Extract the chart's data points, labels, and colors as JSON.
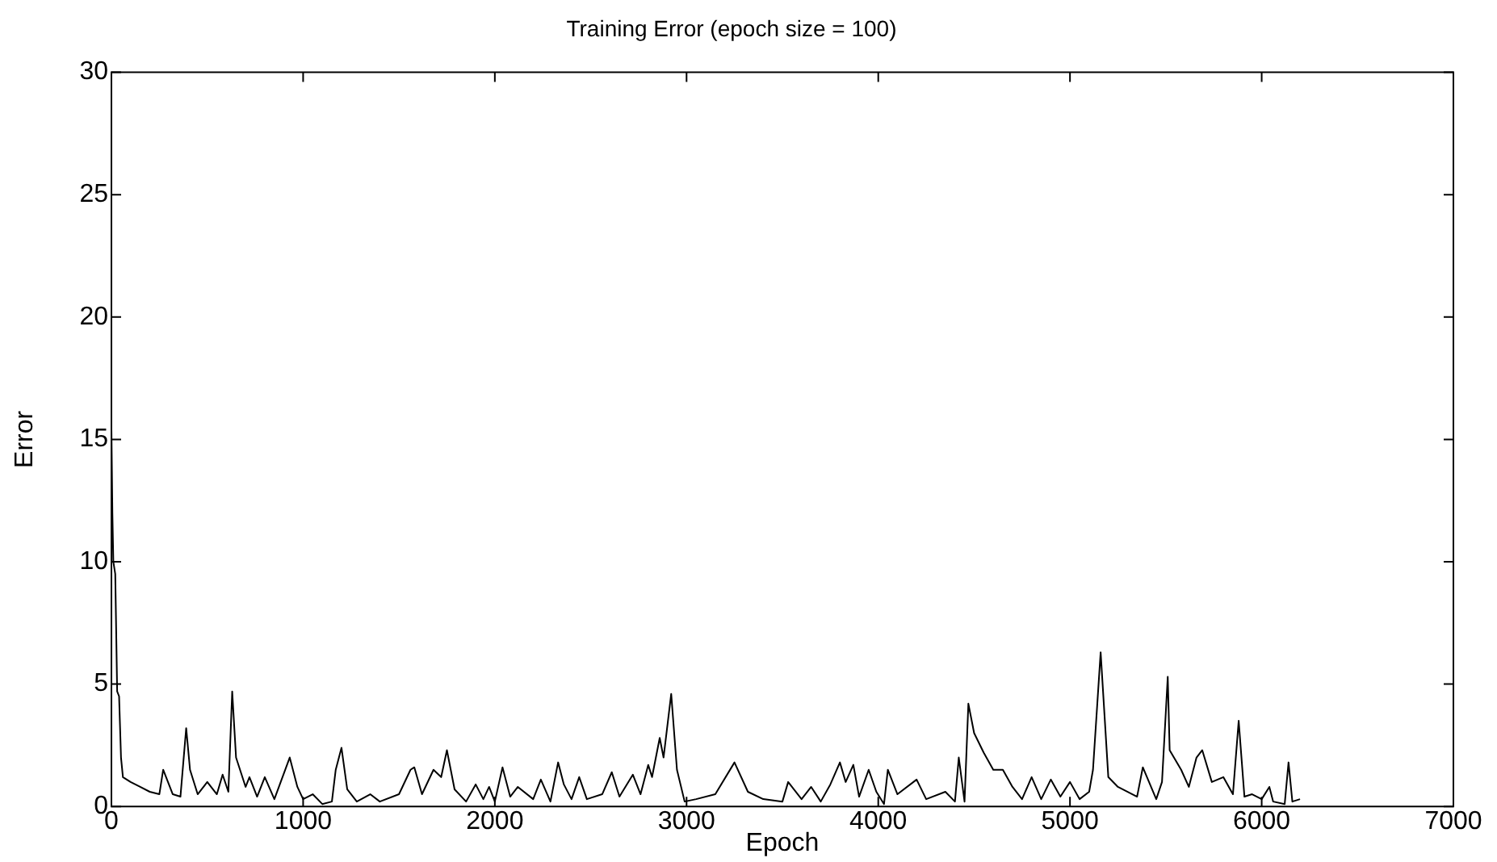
{
  "chart_data": {
    "type": "line",
    "title": "Training Error (epoch size = 100)",
    "xlabel": "Epoch",
    "ylabel": "Error",
    "xlim": [
      0,
      7000
    ],
    "ylim": [
      0,
      30
    ],
    "xticks": [
      0,
      1000,
      2000,
      3000,
      4000,
      5000,
      6000,
      7000
    ],
    "yticks": [
      0,
      5,
      10,
      15,
      20,
      25,
      30
    ],
    "legend": false,
    "marker": "none",
    "line_style": "solid",
    "series": [
      {
        "color": "#000000",
        "x": [
          0,
          5,
          10,
          20,
          30,
          40,
          50,
          60,
          100,
          150,
          200,
          250,
          270,
          320,
          360,
          390,
          410,
          450,
          500,
          550,
          580,
          610,
          630,
          650,
          700,
          720,
          760,
          800,
          850,
          930,
          970,
          1000,
          1050,
          1100,
          1150,
          1170,
          1200,
          1230,
          1280,
          1350,
          1400,
          1500,
          1560,
          1580,
          1620,
          1680,
          1720,
          1750,
          1790,
          1850,
          1900,
          1940,
          1970,
          2000,
          2040,
          2080,
          2120,
          2200,
          2240,
          2290,
          2330,
          2360,
          2400,
          2440,
          2480,
          2560,
          2610,
          2650,
          2720,
          2760,
          2800,
          2820,
          2860,
          2880,
          2920,
          2950,
          2990,
          3050,
          3150,
          3250,
          3320,
          3400,
          3500,
          3530,
          3600,
          3650,
          3700,
          3750,
          3800,
          3830,
          3870,
          3900,
          3950,
          3990,
          4030,
          4050,
          4100,
          4200,
          4250,
          4350,
          4400,
          4420,
          4450,
          4470,
          4500,
          4550,
          4600,
          4650,
          4700,
          4750,
          4800,
          4850,
          4900,
          4950,
          5000,
          5050,
          5100,
          5120,
          5160,
          5200,
          5250,
          5350,
          5380,
          5450,
          5480,
          5510,
          5520,
          5580,
          5620,
          5660,
          5690,
          5740,
          5800,
          5850,
          5880,
          5910,
          5950,
          6000,
          6040,
          6060,
          6120,
          6140,
          6160,
          6200
        ],
        "values": [
          15.5,
          12,
          10,
          9.5,
          4.7,
          4.5,
          2,
          1.2,
          1,
          0.8,
          0.6,
          0.5,
          1.5,
          0.5,
          0.4,
          3.2,
          1.5,
          0.5,
          1,
          0.5,
          1.3,
          0.6,
          4.7,
          2,
          0.8,
          1.2,
          0.4,
          1.2,
          0.3,
          2,
          0.8,
          0.3,
          0.5,
          0.1,
          0.2,
          1.5,
          2.4,
          0.7,
          0.2,
          0.5,
          0.2,
          0.5,
          1.5,
          1.6,
          0.5,
          1.5,
          1.2,
          2.3,
          0.7,
          0.2,
          0.9,
          0.3,
          0.8,
          0.2,
          1.6,
          0.4,
          0.8,
          0.3,
          1.1,
          0.2,
          1.8,
          0.9,
          0.3,
          1.2,
          0.3,
          0.5,
          1.4,
          0.4,
          1.3,
          0.5,
          1.7,
          1.2,
          2.8,
          2,
          4.6,
          1.5,
          0.2,
          0.3,
          0.5,
          1.8,
          0.6,
          0.3,
          0.2,
          1,
          0.3,
          0.8,
          0.2,
          0.9,
          1.8,
          1,
          1.7,
          0.4,
          1.5,
          0.6,
          0.1,
          1.5,
          0.5,
          1.1,
          0.3,
          0.6,
          0.2,
          2,
          0.2,
          4.2,
          3,
          2.2,
          1.5,
          1.5,
          0.8,
          0.3,
          1.2,
          0.3,
          1.1,
          0.4,
          1,
          0.3,
          0.6,
          1.5,
          6.3,
          1.2,
          0.8,
          0.4,
          1.6,
          0.3,
          1,
          5.3,
          2.3,
          1.5,
          0.8,
          2,
          2.3,
          1,
          1.2,
          0.5,
          3.5,
          0.4,
          0.5,
          0.3,
          0.8,
          0.2,
          0.1,
          1.8,
          0.2,
          0.3
        ]
      }
    ]
  }
}
